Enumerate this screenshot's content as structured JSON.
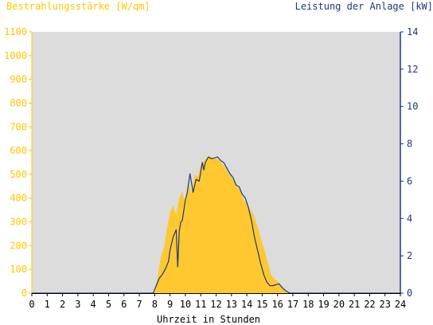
{
  "chart_data": {
    "type": "area",
    "left_axis_title": "Bestrahlungsstärke [W/qm]",
    "right_axis_title": "Leistung der Anlage [kW]",
    "xlabel": "Uhrzeit in Stunden",
    "xlim": [
      0,
      24
    ],
    "ylim_left": [
      0,
      1100
    ],
    "ylim_right": [
      0,
      14
    ],
    "x_ticks": [
      "0",
      "1",
      "2",
      "3",
      "4",
      "5",
      "6",
      "7",
      "8",
      "9",
      "10",
      "11",
      "12",
      "13",
      "14",
      "15",
      "16",
      "17",
      "18",
      "19",
      "20",
      "21",
      "22",
      "23",
      "24"
    ],
    "y_ticks_left": [
      "0",
      "100",
      "200",
      "300",
      "400",
      "500",
      "600",
      "700",
      "800",
      "900",
      "1000",
      "1100"
    ],
    "y_ticks_right": [
      "0",
      "2",
      "4",
      "6",
      "8",
      "10",
      "12",
      "14"
    ],
    "grid": false,
    "colors": {
      "plot_background": "#dcdcdc",
      "irradiance_fill": "#ffc830",
      "power_line": "#1f3a78",
      "left_axis": "#ffc700",
      "right_axis": "#1f3a78"
    },
    "series": [
      {
        "axis": "left",
        "kind": "area",
        "x": [
          0,
          7.9,
          8.0,
          8.2,
          8.4,
          8.6,
          8.8,
          9.0,
          9.2,
          9.4,
          9.6,
          9.8,
          10.0,
          10.2,
          10.4,
          10.6,
          10.8,
          11.0,
          11.2,
          11.4,
          11.6,
          11.8,
          12.0,
          12.2,
          12.4,
          12.6,
          12.8,
          13.0,
          13.2,
          13.4,
          13.6,
          13.8,
          14.0,
          14.2,
          14.4,
          14.6,
          14.8,
          15.0,
          15.2,
          15.4,
          15.6,
          15.8,
          16.0,
          16.2,
          16.4,
          16.6,
          16.8,
          24
        ],
        "y": [
          0,
          0,
          10,
          70,
          150,
          190,
          270,
          340,
          370,
          330,
          400,
          430,
          380,
          470,
          420,
          500,
          490,
          540,
          555,
          570,
          575,
          570,
          565,
          560,
          545,
          530,
          505,
          490,
          465,
          445,
          430,
          390,
          380,
          355,
          335,
          300,
          260,
          210,
          170,
          120,
          75,
          60,
          50,
          35,
          20,
          5,
          0,
          0
        ]
      },
      {
        "axis": "right",
        "kind": "line",
        "x": [
          0,
          7.9,
          8.1,
          8.3,
          8.5,
          8.7,
          8.9,
          9.0,
          9.2,
          9.4,
          9.5,
          9.6,
          9.7,
          9.8,
          10.0,
          10.1,
          10.3,
          10.5,
          10.7,
          10.9,
          11.1,
          11.2,
          11.3,
          11.5,
          11.7,
          11.9,
          12.1,
          12.3,
          12.5,
          12.7,
          12.9,
          13.1,
          13.3,
          13.5,
          13.7,
          13.9,
          14.1,
          14.3,
          14.5,
          14.7,
          14.9,
          15.1,
          15.3,
          15.5,
          15.7,
          15.9,
          16.1,
          16.3,
          16.5,
          16.8,
          17.0,
          24
        ],
        "y": [
          0,
          0,
          0.4,
          0.8,
          1.0,
          1.3,
          1.7,
          2.3,
          3.0,
          3.4,
          1.4,
          3.3,
          3.8,
          3.9,
          5.0,
          5.3,
          6.4,
          5.4,
          6.1,
          6.0,
          7.0,
          6.6,
          7.0,
          7.3,
          7.2,
          7.25,
          7.3,
          7.1,
          7.0,
          6.7,
          6.4,
          6.2,
          5.8,
          5.7,
          5.3,
          5.1,
          4.6,
          3.9,
          3.0,
          2.3,
          1.6,
          1.0,
          0.6,
          0.4,
          0.4,
          0.45,
          0.5,
          0.3,
          0.15,
          0,
          0,
          0
        ]
      }
    ]
  }
}
